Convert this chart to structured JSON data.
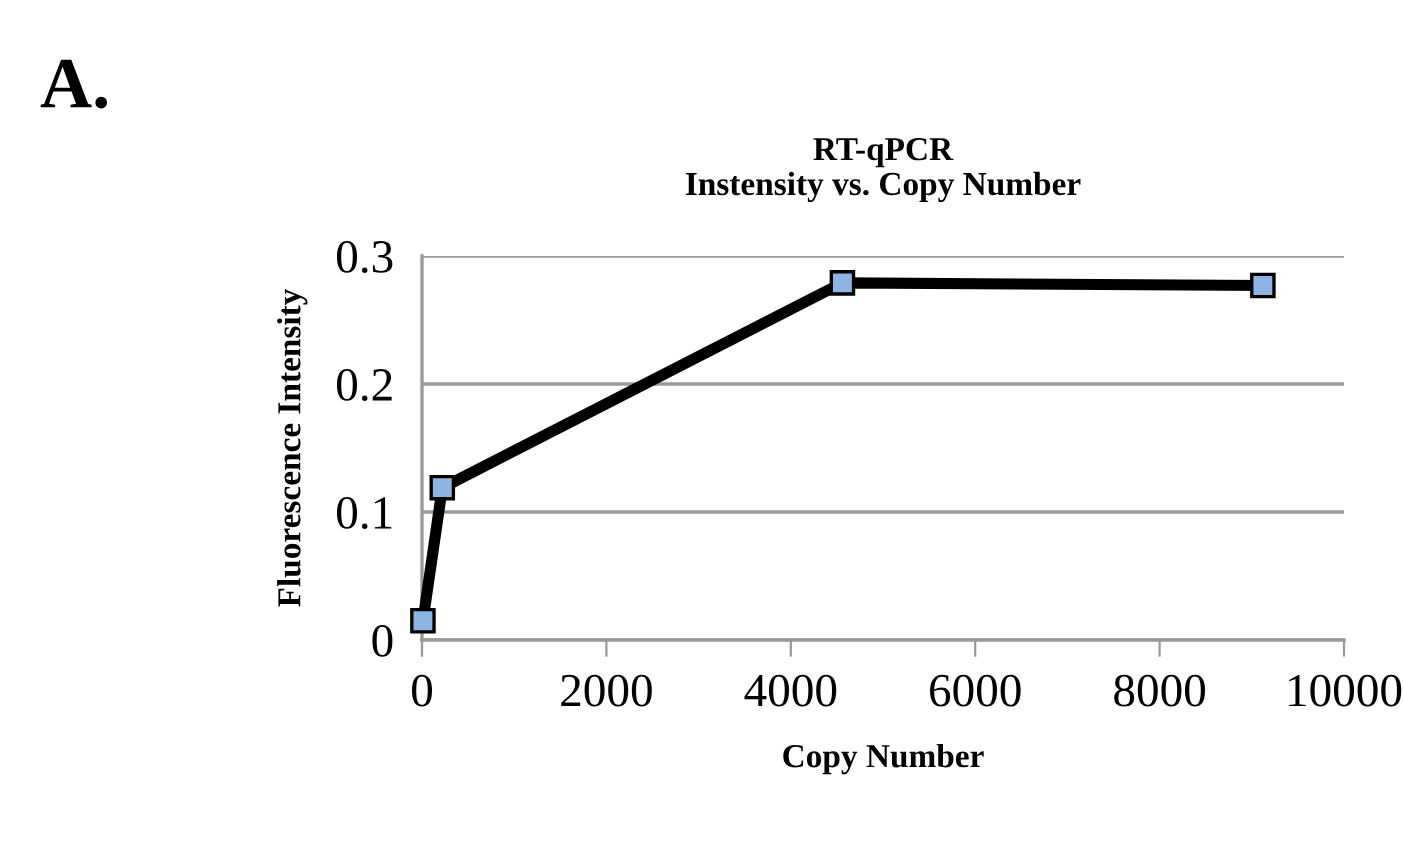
{
  "chart_data": {
    "type": "line",
    "title": "RT-qPCR\nInstensity vs. Copy Number",
    "xlabel": "Copy Number",
    "ylabel": "Fluorescence Intensity",
    "annotations": [
      "A."
    ],
    "x": [
      10,
      220,
      4560,
      9120
    ],
    "series": [
      {
        "color": "#000000",
        "values": [
          0.015,
          0.119,
          0.279,
          0.277
        ]
      }
    ],
    "marker": "square",
    "line_style": "solid",
    "xlim": [
      0,
      10000
    ],
    "xticks": [
      0,
      2000,
      4000,
      6000,
      8000,
      10000
    ],
    "ylim": [
      0,
      0.3
    ],
    "yticks": [
      0,
      0.1,
      0.2,
      0.3
    ],
    "grid": "y",
    "legend": false
  }
}
